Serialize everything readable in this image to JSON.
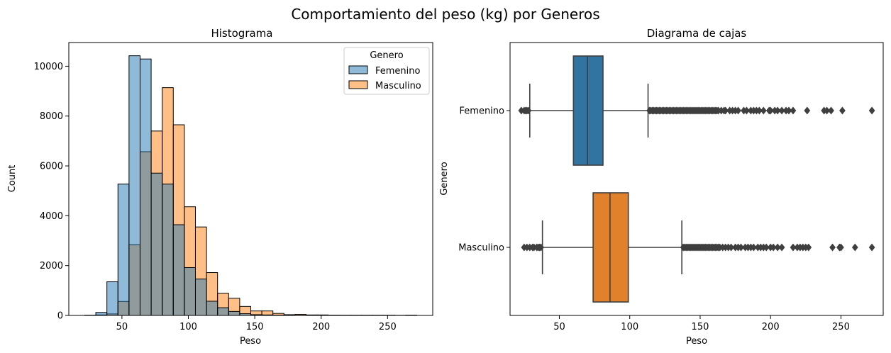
{
  "suptitle": "Comportamiento del peso (kg) por Generos",
  "colors": {
    "femenino": "#1f77b4",
    "masculino": "#ff7f0e",
    "femenino_box": "#3274a1",
    "masculino_box": "#e1812c",
    "overlap": "#8c9aa0",
    "edge": "#000000",
    "whisker": "#3f3f3f"
  },
  "chart_data": [
    {
      "type": "bar",
      "subtype": "histogram",
      "title": "Histograma",
      "xlabel": "Peso",
      "ylabel": "Count",
      "xlim": [
        10,
        284
      ],
      "ylim": [
        0,
        10950
      ],
      "xticks": [
        50,
        100,
        150,
        200,
        250
      ],
      "yticks": [
        0,
        2000,
        4000,
        6000,
        8000,
        10000
      ],
      "bin_start": 22,
      "bin_width": 8.333,
      "legend": {
        "title": "Genero",
        "placement": "top-right",
        "entries": [
          "Femenino",
          "Masculino"
        ]
      },
      "series": [
        {
          "name": "Femenino",
          "values": [
            10,
            120,
            1350,
            5270,
            10420,
            10290,
            5710,
            5270,
            3640,
            1920,
            1460,
            570,
            310,
            160,
            70,
            30,
            20,
            10,
            10,
            5,
            5,
            0,
            5,
            0,
            0,
            0,
            0,
            0,
            0,
            5
          ]
        },
        {
          "name": "Masculino",
          "values": [
            0,
            20,
            60,
            560,
            2840,
            6570,
            7400,
            9140,
            7650,
            4360,
            3550,
            1720,
            890,
            690,
            360,
            180,
            180,
            80,
            30,
            40,
            20,
            20,
            10,
            10,
            10,
            10,
            10,
            10,
            5,
            10
          ]
        }
      ]
    },
    {
      "type": "box",
      "title": "Diagrama de cajas",
      "xlabel": "Peso",
      "ylabel": "Genero",
      "xlim": [
        15,
        280
      ],
      "xticks": [
        50,
        100,
        150,
        200,
        250
      ],
      "categories": [
        "Femenino",
        "Masculino"
      ],
      "boxes": [
        {
          "name": "Femenino",
          "whisker_low": 29,
          "q1": 60,
          "median": 70,
          "q3": 81,
          "whisker_high": 113,
          "outliers_low": [
            23,
            25,
            26,
            27,
            28
          ],
          "outliers_high": [
            114,
            115,
            116,
            117,
            118,
            119,
            120,
            121,
            122,
            123,
            124,
            125,
            126,
            127,
            128,
            129,
            130,
            131,
            132,
            133,
            134,
            135,
            136,
            137,
            138,
            139,
            140,
            141,
            142,
            143,
            144,
            145,
            146,
            147,
            148,
            149,
            150,
            151,
            152,
            153,
            154,
            155,
            156,
            157,
            158,
            159,
            160,
            161,
            162,
            163,
            165,
            167,
            168,
            171,
            173,
            175,
            177,
            181,
            183,
            186,
            188,
            190,
            192,
            195,
            199,
            200,
            203,
            205,
            208,
            211,
            213,
            216,
            226,
            238,
            240,
            243,
            251,
            272
          ]
        },
        {
          "name": "Masculino",
          "whisker_low": 38,
          "q1": 74,
          "median": 86,
          "q3": 99,
          "whisker_high": 137,
          "outliers_low": [
            25,
            27,
            29,
            31,
            32,
            34,
            35,
            36,
            37
          ],
          "outliers_high": [
            138,
            139,
            140,
            141,
            142,
            143,
            144,
            145,
            146,
            147,
            148,
            149,
            150,
            151,
            152,
            153,
            154,
            155,
            156,
            157,
            158,
            159,
            160,
            161,
            162,
            163,
            164,
            166,
            168,
            170,
            172,
            175,
            177,
            179,
            182,
            184,
            186,
            188,
            191,
            193,
            195,
            197,
            200,
            202,
            205,
            208,
            216,
            219,
            221,
            223,
            225,
            227,
            244,
            249,
            250,
            260,
            272
          ]
        }
      ]
    }
  ]
}
